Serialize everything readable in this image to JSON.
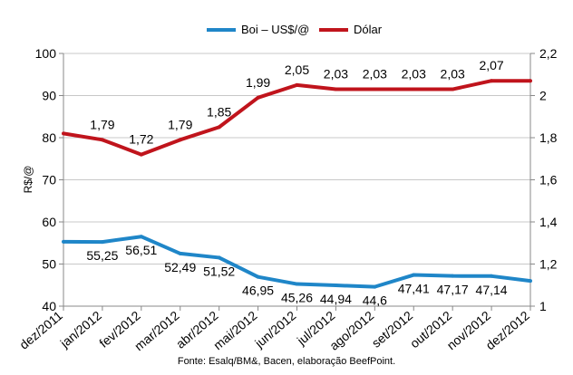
{
  "chart_data": {
    "type": "line",
    "categories": [
      "dez/2011",
      "jan/2012",
      "fev/2012",
      "mar/2012",
      "abr/2012",
      "mai/2012",
      "jun/2012",
      "jul/2012",
      "ago/2012",
      "set/2012",
      "out/2012",
      "nov/2012",
      "dez/2012"
    ],
    "series": [
      {
        "name": "Boi – US$/@",
        "axis": "left",
        "color": "#1f86c8",
        "values": [
          55.3,
          55.25,
          56.51,
          52.49,
          51.52,
          46.95,
          45.26,
          44.94,
          44.6,
          47.41,
          47.17,
          47.14,
          46.0
        ],
        "labels": [
          "",
          "55,25",
          "56,51",
          "52,49",
          "51,52",
          "46,95",
          "45,26",
          "44,94",
          "44,6",
          "47,41",
          "47,17",
          "47,14",
          ""
        ]
      },
      {
        "name": "Dólar",
        "axis": "right",
        "color": "#c0141c",
        "values": [
          1.82,
          1.79,
          1.72,
          1.79,
          1.85,
          1.99,
          2.05,
          2.03,
          2.03,
          2.03,
          2.03,
          2.07,
          2.07
        ],
        "labels": [
          "",
          "1,79",
          "1,72",
          "1,79",
          "1,85",
          "1,99",
          "2,05",
          "2,03",
          "2,03",
          "2,03",
          "2,03",
          "2,07",
          ""
        ]
      }
    ],
    "ylabel": "R$/@",
    "ylim": [
      40,
      100
    ],
    "yticks": [
      "40",
      "50",
      "60",
      "70",
      "80",
      "90",
      "100"
    ],
    "y2lim": [
      1.0,
      2.2
    ],
    "y2ticks": [
      "1",
      "1,2",
      "1,4",
      "1,6",
      "1,8",
      "2",
      "2,2"
    ],
    "grid": true,
    "legend_placement": "top-center",
    "source": "Fonte: Esalq/BM&, Bacen, elaboração BeefPoint."
  }
}
